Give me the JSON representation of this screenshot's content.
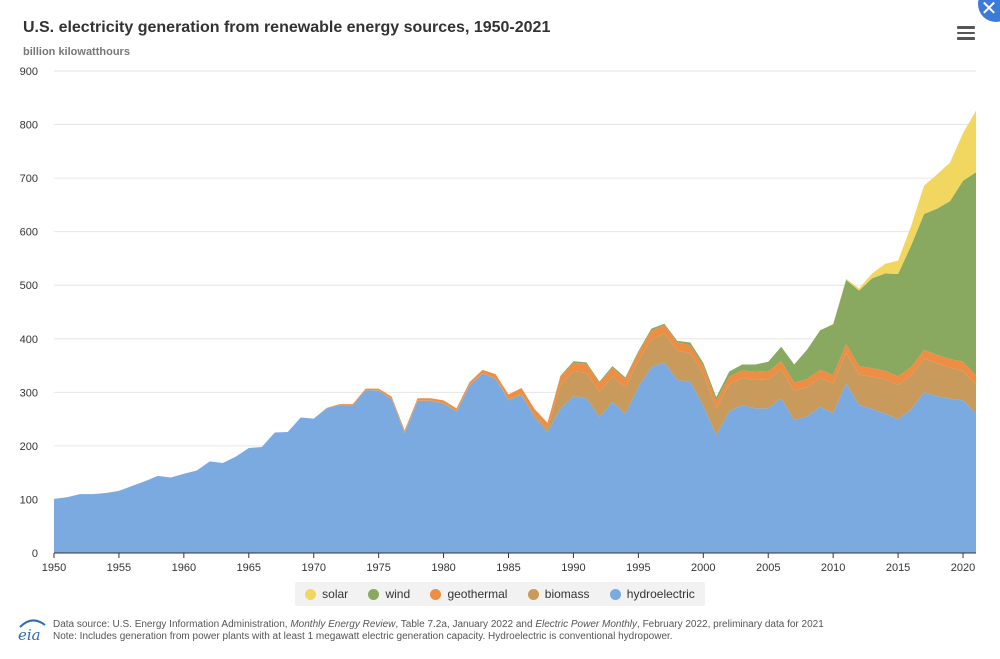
{
  "header": {
    "title": "U.S. electricity generation from renewable energy sources, 1950-2021",
    "subtitle": "billion kilowatthours"
  },
  "footer": {
    "source_prefix": "Data source: U.S. Energy Information Administration, ",
    "source_pub1": "Monthly Energy Review",
    "source_mid": ", Table 7.2a, January 2022 and ",
    "source_pub2": "Electric Power Monthly",
    "source_suffix": ", February 2022, preliminary data for 2021",
    "note": "Note: Includes generation from power plants with at least 1 megawatt electric generation capacity. Hydroelectric is conventional hydropower.",
    "logo_text": "eia"
  },
  "colors": {
    "hydroelectric": "#7aaadf",
    "biomass": "#c89a5c",
    "geothermal": "#ee8d44",
    "wind": "#8aa960",
    "solar": "#f1d760"
  },
  "chart_data": {
    "type": "area",
    "stacked": true,
    "title": "U.S. electricity generation from renewable energy sources, 1950-2021",
    "ylabel": "billion kilowatthours",
    "xlim": [
      1950,
      2021
    ],
    "ylim": [
      0,
      900
    ],
    "yticks": [
      0,
      100,
      200,
      300,
      400,
      500,
      600,
      700,
      800,
      900
    ],
    "xticks": [
      1950,
      1955,
      1960,
      1965,
      1970,
      1975,
      1980,
      1985,
      1990,
      1995,
      2000,
      2005,
      2010,
      2015,
      2020
    ],
    "grid": true,
    "legend_position": "bottom-center",
    "x": [
      1950,
      1951,
      1952,
      1953,
      1954,
      1955,
      1956,
      1957,
      1958,
      1959,
      1960,
      1961,
      1962,
      1963,
      1964,
      1965,
      1966,
      1967,
      1968,
      1969,
      1970,
      1971,
      1972,
      1973,
      1974,
      1975,
      1976,
      1977,
      1978,
      1979,
      1980,
      1981,
      1982,
      1983,
      1984,
      1985,
      1986,
      1987,
      1988,
      1989,
      1990,
      1991,
      1992,
      1993,
      1994,
      1995,
      1996,
      1997,
      1998,
      1999,
      2000,
      2001,
      2002,
      2003,
      2004,
      2005,
      2006,
      2007,
      2008,
      2009,
      2010,
      2011,
      2012,
      2013,
      2014,
      2015,
      2016,
      2017,
      2018,
      2019,
      2020,
      2021
    ],
    "legend_order": [
      "solar",
      "wind",
      "geothermal",
      "biomass",
      "hydroelectric"
    ],
    "series": [
      {
        "name": "hydroelectric",
        "values": [
          101,
          104,
          110,
          110,
          112,
          116,
          125,
          134,
          144,
          141,
          148,
          154,
          171,
          168,
          180,
          196,
          198,
          225,
          226,
          253,
          251,
          270,
          276,
          276,
          304,
          303,
          287,
          224,
          284,
          284,
          279,
          264,
          313,
          335,
          325,
          285,
          295,
          253,
          226,
          270,
          293,
          289,
          254,
          282,
          260,
          310,
          347,
          356,
          323,
          320,
          275,
          220,
          265,
          276,
          270,
          270,
          289,
          248,
          255,
          273,
          261,
          317,
          276,
          269,
          260,
          250,
          268,
          300,
          293,
          288,
          285,
          260
        ]
      },
      {
        "name": "biomass",
        "values": [
          0,
          0,
          0,
          0,
          0,
          0,
          0,
          0,
          0,
          0,
          0,
          0,
          0,
          0,
          0,
          0,
          0,
          0,
          0,
          0,
          0,
          0,
          0,
          0,
          0,
          1,
          1,
          1,
          1,
          1,
          1,
          1,
          1,
          1,
          2,
          2,
          3,
          5,
          6,
          44,
          46,
          48,
          47,
          48,
          49,
          50,
          52,
          54,
          55,
          53,
          60,
          50,
          50,
          51,
          53,
          54,
          54,
          55,
          55,
          54,
          56,
          57,
          57,
          60,
          64,
          64,
          63,
          63,
          61,
          58,
          55,
          54
        ]
      },
      {
        "name": "geothermal",
        "values": [
          0,
          0,
          0,
          0,
          0,
          0,
          0,
          0,
          0,
          0,
          0,
          0,
          0,
          0,
          0,
          0,
          0,
          0,
          0,
          0,
          0,
          1,
          2,
          2,
          3,
          3,
          4,
          4,
          4,
          4,
          5,
          5,
          5,
          6,
          7,
          9,
          10,
          11,
          11,
          15,
          16,
          16,
          16,
          16,
          16,
          14,
          16,
          15,
          15,
          15,
          14,
          14,
          14,
          14,
          15,
          15,
          15,
          15,
          15,
          15,
          15,
          16,
          16,
          16,
          16,
          16,
          16,
          16,
          16,
          16,
          17,
          17
        ]
      },
      {
        "name": "wind",
        "values": [
          0,
          0,
          0,
          0,
          0,
          0,
          0,
          0,
          0,
          0,
          0,
          0,
          0,
          0,
          0,
          0,
          0,
          0,
          0,
          0,
          0,
          0,
          0,
          0,
          0,
          0,
          0,
          0,
          0,
          0,
          0,
          0,
          0,
          0,
          0,
          0,
          0,
          0,
          0,
          2,
          3,
          3,
          3,
          3,
          3,
          3,
          4,
          3,
          3,
          5,
          6,
          7,
          10,
          11,
          14,
          18,
          27,
          34,
          55,
          74,
          95,
          120,
          141,
          168,
          182,
          191,
          227,
          254,
          273,
          295,
          338,
          380
        ]
      },
      {
        "name": "solar",
        "values": [
          0,
          0,
          0,
          0,
          0,
          0,
          0,
          0,
          0,
          0,
          0,
          0,
          0,
          0,
          0,
          0,
          0,
          0,
          0,
          0,
          0,
          0,
          0,
          0,
          0,
          0,
          0,
          0,
          0,
          0,
          0,
          0,
          0,
          0,
          0,
          0,
          0,
          0,
          0,
          0,
          0,
          0,
          0,
          0,
          0,
          0,
          0,
          0,
          0,
          0,
          0,
          0,
          0,
          0,
          0,
          0,
          0,
          0,
          0,
          0,
          1,
          2,
          4,
          9,
          18,
          25,
          36,
          53,
          64,
          72,
          89,
          115
        ]
      }
    ]
  }
}
